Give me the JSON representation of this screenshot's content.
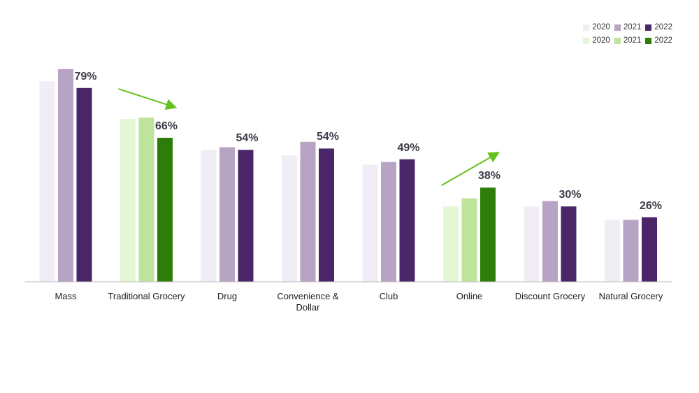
{
  "colors": {
    "purple": [
      "#f0eef4",
      "#b7a3c3",
      "#4a2668"
    ],
    "green": [
      "#e3f7d5",
      "#bde39c",
      "#2e7d0a"
    ],
    "arrow": "#63c21a",
    "axis": "#bfbfbf"
  },
  "legend": {
    "purple": [
      "2020",
      "2021",
      "2022"
    ],
    "green": [
      "2020",
      "2021",
      "2022"
    ]
  },
  "chart_data": {
    "type": "bar",
    "categories": [
      "Mass",
      "Traditional Grocery",
      "Drug",
      "Convenience & Dollar",
      "Club",
      "Online",
      "Discount Grocery",
      "Natural Grocery"
    ],
    "category_palette": [
      "purple",
      "green",
      "purple",
      "purple",
      "purple",
      "green",
      "purple",
      "purple"
    ],
    "series": [
      {
        "name": "2020",
        "values": [
          74.5,
          60.5,
          49,
          47,
          43.5,
          28,
          28,
          23
        ]
      },
      {
        "name": "2021",
        "values": [
          79,
          61,
          50,
          52,
          44.5,
          31,
          30,
          23
        ]
      },
      {
        "name": "2022",
        "values": [
          72,
          53.5,
          49,
          49.5,
          45.5,
          35,
          28,
          24
        ]
      }
    ],
    "data_labels": [
      "79%",
      "66%",
      "54%",
      "54%",
      "49%",
      "38%",
      "30%",
      "26%"
    ],
    "trend_arrows": [
      "Traditional Grocery",
      "Online"
    ],
    "ylim": [
      0,
      100
    ],
    "grid": false,
    "legend_position": "top-right"
  }
}
